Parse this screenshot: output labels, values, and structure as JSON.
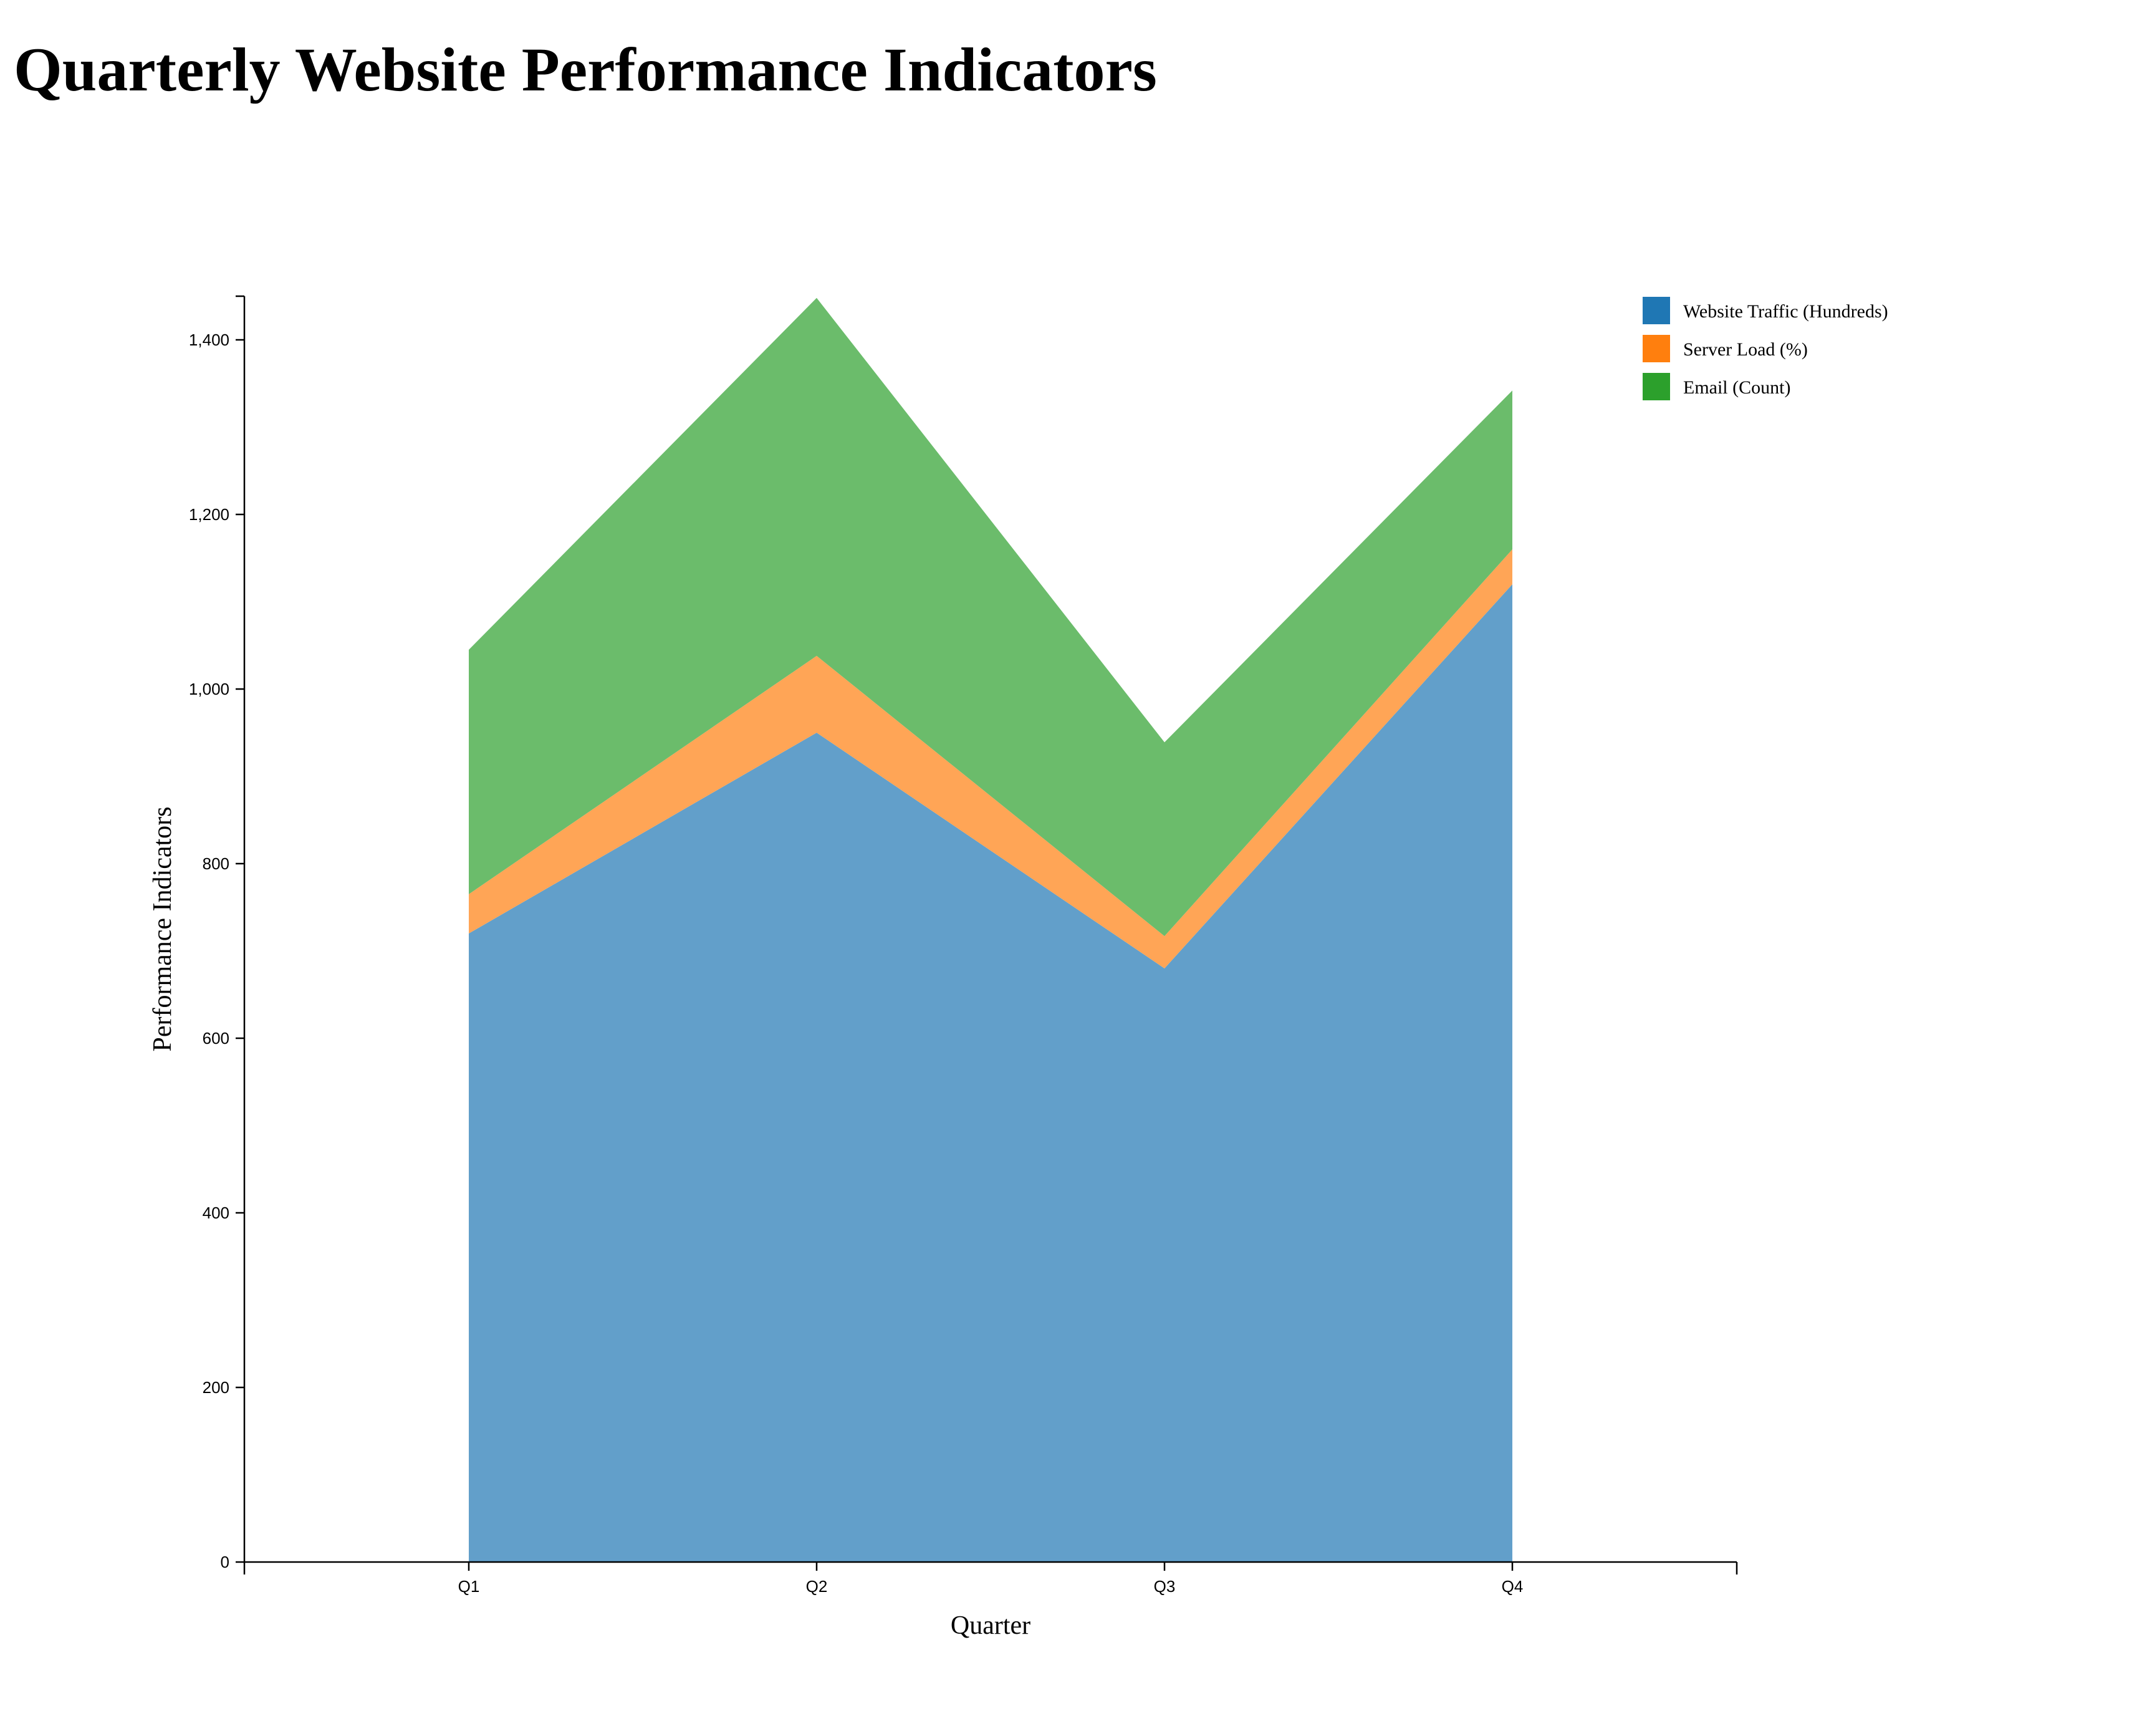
{
  "chart_data": {
    "type": "area",
    "stacked": true,
    "title": "Quarterly Website Performance Indicators",
    "xlabel": "Quarter",
    "ylabel": "Performance Indicators",
    "categories": [
      "Q1",
      "Q2",
      "Q3",
      "Q4"
    ],
    "ylim": [
      0,
      1450
    ],
    "yticks": [
      0,
      200,
      400,
      600,
      800,
      1000,
      1200,
      1400
    ],
    "ytick_labels": [
      "0",
      "200",
      "400",
      "600",
      "800",
      "1,000",
      "1,200",
      "1,400"
    ],
    "grid": false,
    "legend_position": "top-right",
    "series": [
      {
        "name": "Website Traffic (Hundreds)",
        "values": [
          720,
          950,
          680,
          1120
        ],
        "color": "#1f77b4",
        "fill_color": "#629fca"
      },
      {
        "name": "Server Load (%)",
        "values": [
          45,
          88,
          37,
          40
        ],
        "color": "#ff7f0e",
        "fill_color": "#ffa556"
      },
      {
        "name": "Email (Count)",
        "values": [
          280,
          410,
          222,
          182
        ],
        "color": "#2ca02c",
        "fill_color": "#6bbc6b"
      }
    ]
  }
}
